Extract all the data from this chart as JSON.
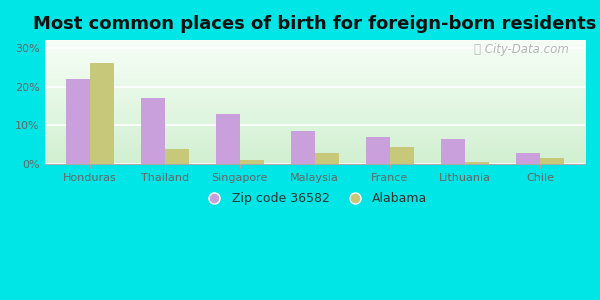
{
  "title": "Most common places of birth for foreign-born residents",
  "categories": [
    "Honduras",
    "Thailand",
    "Singapore",
    "Malaysia",
    "France",
    "Lithuania",
    "Chile"
  ],
  "zip_values": [
    22,
    17,
    13,
    8.5,
    7,
    6.5,
    3
  ],
  "alabama_values": [
    26,
    4,
    1,
    3,
    4.5,
    0.5,
    1.5
  ],
  "zip_color": "#c9a0dc",
  "alabama_color": "#c8c87a",
  "zip_label": "Zip code 36582",
  "alabama_label": "Alabama",
  "yticks": [
    0,
    10,
    20,
    30
  ],
  "ytick_labels": [
    "0%",
    "10%",
    "20%",
    "30%"
  ],
  "ylim": [
    0,
    32
  ],
  "background_color": "#00e5e5",
  "title_fontsize": 13,
  "watermark": "⎙ City-Data.com"
}
